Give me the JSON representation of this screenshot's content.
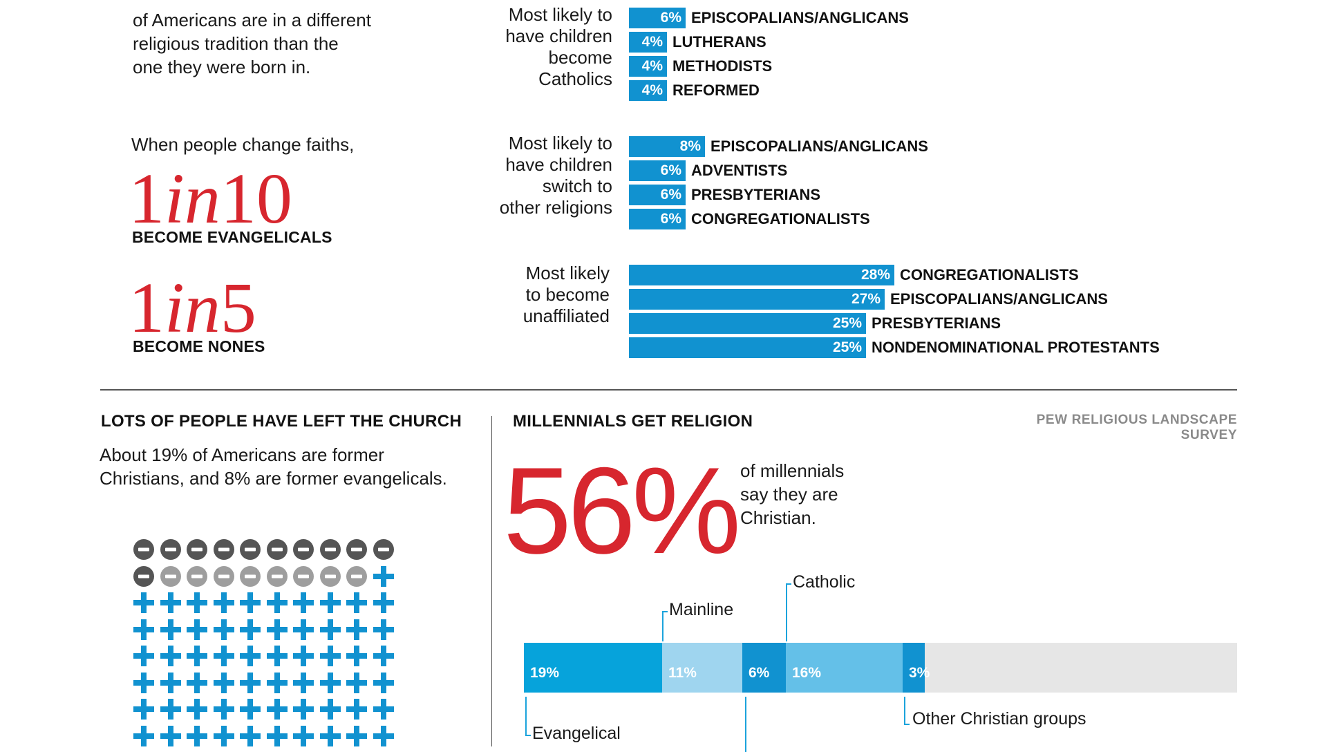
{
  "top_left": {
    "intro_text": [
      "of Americans are in a different",
      "religious tradition than the",
      "one they were born in."
    ],
    "change_faiths": "When people change faiths,",
    "stat1": {
      "a": "1",
      "b": "in",
      "c": "10",
      "label": "BECOME EVANGELICALS"
    },
    "stat2": {
      "a": "1",
      "b": "in",
      "c": "5",
      "label": "BECOME NONES"
    }
  },
  "bar_groups": [
    {
      "label": [
        "Most likely to",
        "have children",
        "become",
        "Catholics"
      ],
      "bars": [
        {
          "value": 6,
          "pct": "6%",
          "name": "EPISCOPALIANS/ANGLICANS"
        },
        {
          "value": 4,
          "pct": "4%",
          "name": "LUTHERANS"
        },
        {
          "value": 4,
          "pct": "4%",
          "name": "METHODISTS"
        },
        {
          "value": 4,
          "pct": "4%",
          "name": "REFORMED"
        }
      ]
    },
    {
      "label": [
        "Most likely to",
        "have children",
        "switch to",
        "other religions"
      ],
      "bars": [
        {
          "value": 8,
          "pct": "8%",
          "name": "EPISCOPALIANS/ANGLICANS"
        },
        {
          "value": 6,
          "pct": "6%",
          "name": "ADVENTISTS"
        },
        {
          "value": 6,
          "pct": "6%",
          "name": "PRESBYTERIANS"
        },
        {
          "value": 6,
          "pct": "6%",
          "name": "CONGREGATIONALISTS"
        }
      ]
    },
    {
      "label": [
        "Most likely",
        "to become",
        "unaffiliated"
      ],
      "bars": [
        {
          "value": 28,
          "pct": "28%",
          "name": "CONGREGATIONALISTS"
        },
        {
          "value": 27,
          "pct": "27%",
          "name": "EPISCOPALIANS/ANGLICANS"
        },
        {
          "value": 25,
          "pct": "25%",
          "name": "PRESBYTERIANS"
        },
        {
          "value": 25,
          "pct": "25%",
          "name": "NONDENOMINATIONAL PROTESTANTS"
        }
      ]
    }
  ],
  "left_section": {
    "title": "LOTS OF PEOPLE HAVE LEFT THE CHURCH",
    "text": [
      "About 19% of Americans are former",
      "Christians, and 8% are former evangelicals."
    ]
  },
  "right_section": {
    "title": "MILLENNIALS GET RELIGION",
    "source": "PEW RELIGIOUS LANDSCAPE SURVEY",
    "big_stat": "56%",
    "big_text": [
      "of millennials",
      "say they are",
      "Christian."
    ]
  },
  "chart_data": {
    "type": "bar",
    "subtype": "stacked-100",
    "unit": "%",
    "segments": [
      {
        "name": "Evangelical",
        "value": 19,
        "label": "19%",
        "color": "#06a3db"
      },
      {
        "name": "Mainline",
        "value": 11,
        "label": "11%",
        "color": "#9fd5ef"
      },
      {
        "name": "",
        "value": 6,
        "label": "6%",
        "color": "#1192d0"
      },
      {
        "name": "Catholic",
        "value": 16,
        "label": "16%",
        "color": "#64c0e8"
      },
      {
        "name": "Other Christian groups",
        "value": 3,
        "label": "3%",
        "color": "#1192d0"
      }
    ],
    "remainder_color": "#e6e6e6",
    "bar_max": 100
  },
  "icon_grid": {
    "columns": 10,
    "rows": 9,
    "dark_minus": 11,
    "gray_minus": 8,
    "colors": {
      "dark": "#555555",
      "gray": "#9e9e9e",
      "plus": "#1192d0"
    }
  },
  "colors": {
    "accent_red": "#d7262e",
    "bar_blue": "#1192d0"
  }
}
